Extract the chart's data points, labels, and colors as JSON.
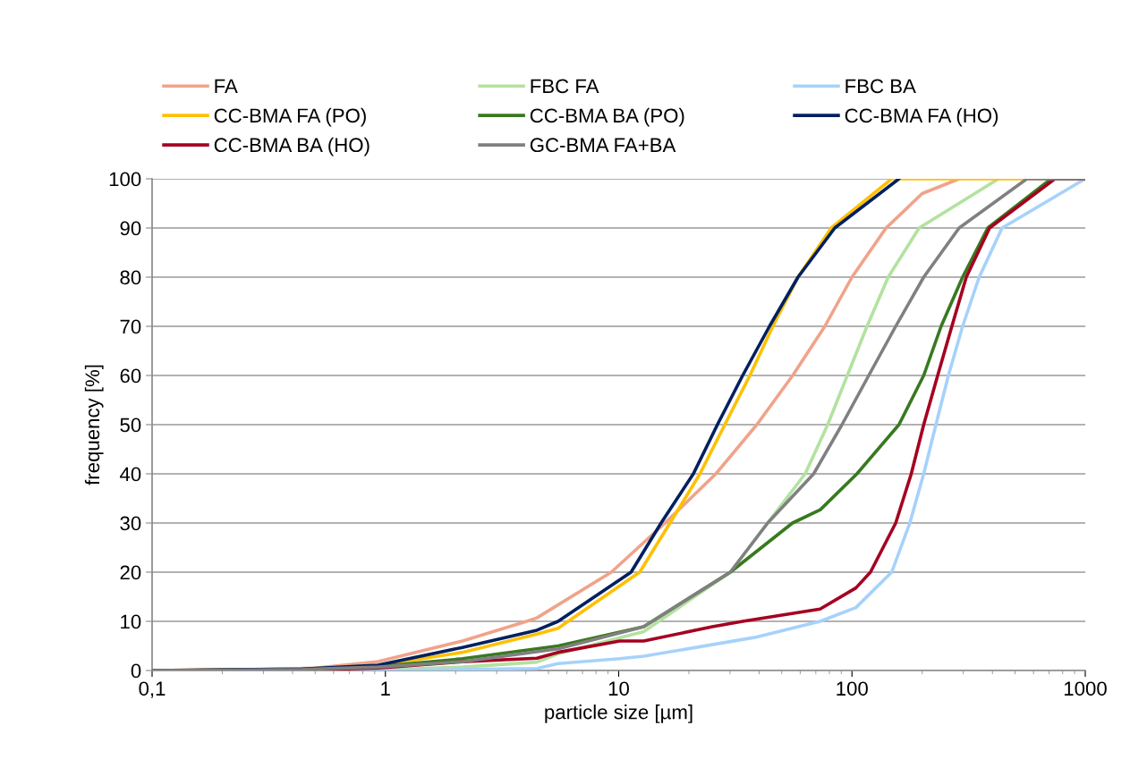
{
  "chart_data": {
    "type": "line",
    "xlabel": "particle size [µm]",
    "ylabel": "frequency [%]",
    "log": "x",
    "xlim": [
      0.1,
      1000
    ],
    "xticks": [
      {
        "value": 0.1,
        "label": "0,1"
      },
      1,
      10,
      100,
      1000
    ],
    "ylim": [
      0,
      100
    ],
    "yticks": [
      0,
      10,
      20,
      30,
      40,
      50,
      60,
      70,
      80,
      90,
      100
    ],
    "grid": "y",
    "legend": "top",
    "marker": "none",
    "line_style": "solid",
    "series": [
      {
        "name": "FA",
        "color": "#f0a38a",
        "x": [
          0.1,
          0.3,
          0.5,
          0.93,
          2.14,
          4.03,
          4.46,
          9.3,
          15.8,
          26.1,
          39.1,
          55.7,
          76.5,
          100,
          140,
          200,
          288
        ],
        "values": [
          0,
          0.2,
          0.5,
          1.8,
          6.0,
          10,
          10.7,
          20,
          30,
          40,
          50,
          60,
          70,
          80,
          90,
          97,
          100
        ]
      },
      {
        "name": "FBC FA",
        "color": "#b3e2a0",
        "x": [
          0.1,
          0.5,
          0.93,
          2.14,
          4.46,
          5.5,
          12.8,
          30.1,
          43.5,
          63,
          78.7,
          95.5,
          116,
          143,
          194,
          425
        ],
        "values": [
          0,
          0,
          0.1,
          0.7,
          1.7,
          3.4,
          7.9,
          20,
          30,
          40,
          50,
          60,
          70,
          80,
          90,
          100
        ]
      },
      {
        "name": "FBC BA",
        "color": "#a6d2fb",
        "x": [
          0.1,
          0.93,
          2.14,
          4.46,
          5.5,
          10.1,
          12.8,
          38,
          73,
          104,
          148,
          177,
          203,
          229,
          259,
          298,
          351,
          440,
          1000
        ],
        "values": [
          0,
          0,
          0.2,
          0.4,
          1.4,
          2.4,
          2.9,
          6.7,
          10,
          12.8,
          20,
          30,
          40,
          50,
          60,
          70,
          80,
          90,
          100
        ]
      },
      {
        "name": "CC-BMA FA (PO)",
        "color": "#ffc000",
        "x": [
          0.1,
          0.44,
          0.93,
          2.14,
          4.46,
          5.5,
          12.3,
          16.6,
          22.3,
          28.5,
          36.5,
          45.8,
          58.7,
          81.5,
          148,
          1000
        ],
        "values": [
          0,
          0.3,
          1.0,
          3.7,
          7.4,
          8.6,
          20,
          30,
          40,
          50,
          60,
          70,
          80,
          90,
          100,
          100
        ]
      },
      {
        "name": "CC-BMA BA (PO)",
        "color": "#38791f",
        "x": [
          0.1,
          0.44,
          0.93,
          2.14,
          5.5,
          12.8,
          30.1,
          43.5,
          55.6,
          73.2,
          105,
          159,
          203,
          241,
          298,
          382,
          714,
          1000
        ],
        "values": [
          0,
          0.2,
          0.8,
          2.4,
          5.0,
          8.9,
          20,
          26,
          30,
          32.7,
          40,
          50,
          60,
          70,
          80,
          90,
          100,
          100
        ]
      },
      {
        "name": "CC-BMA FA (HO)",
        "color": "#002060",
        "x": [
          0.1,
          0.44,
          0.93,
          2.14,
          4.46,
          5.5,
          11.3,
          15.2,
          20.9,
          26.5,
          34,
          44.3,
          58.7,
          84.4,
          159
        ],
        "values": [
          0,
          0.3,
          1.1,
          4.7,
          8.2,
          10,
          20,
          30,
          40,
          50,
          60,
          70,
          80,
          90,
          100
        ]
      },
      {
        "name": "CC-BMA BA (HO)",
        "color": "#a50021",
        "x": [
          0.1,
          0.44,
          0.93,
          2.14,
          4.46,
          5.5,
          10.1,
          12.8,
          25.2,
          34,
          73,
          104,
          120,
          154,
          179.5,
          203,
          233,
          268,
          309,
          389,
          741,
          1000
        ],
        "values": [
          0,
          0.1,
          0.5,
          1.8,
          2.5,
          3.7,
          6.0,
          6.0,
          8.9,
          10,
          12.5,
          16.8,
          20,
          30,
          40,
          50,
          60,
          70,
          80,
          90,
          100,
          100
        ]
      },
      {
        "name": "GC-BMA FA+BA",
        "color": "#808080",
        "x": [
          0.1,
          0.44,
          0.93,
          2.14,
          5.5,
          12.8,
          30.1,
          43.5,
          68.5,
          90.6,
          118,
          154,
          203,
          288,
          562,
          1000
        ],
        "values": [
          0,
          0.2,
          0.7,
          1.8,
          4.4,
          8.9,
          20,
          30,
          40,
          50,
          60,
          70,
          80,
          90,
          100,
          100
        ]
      }
    ]
  }
}
